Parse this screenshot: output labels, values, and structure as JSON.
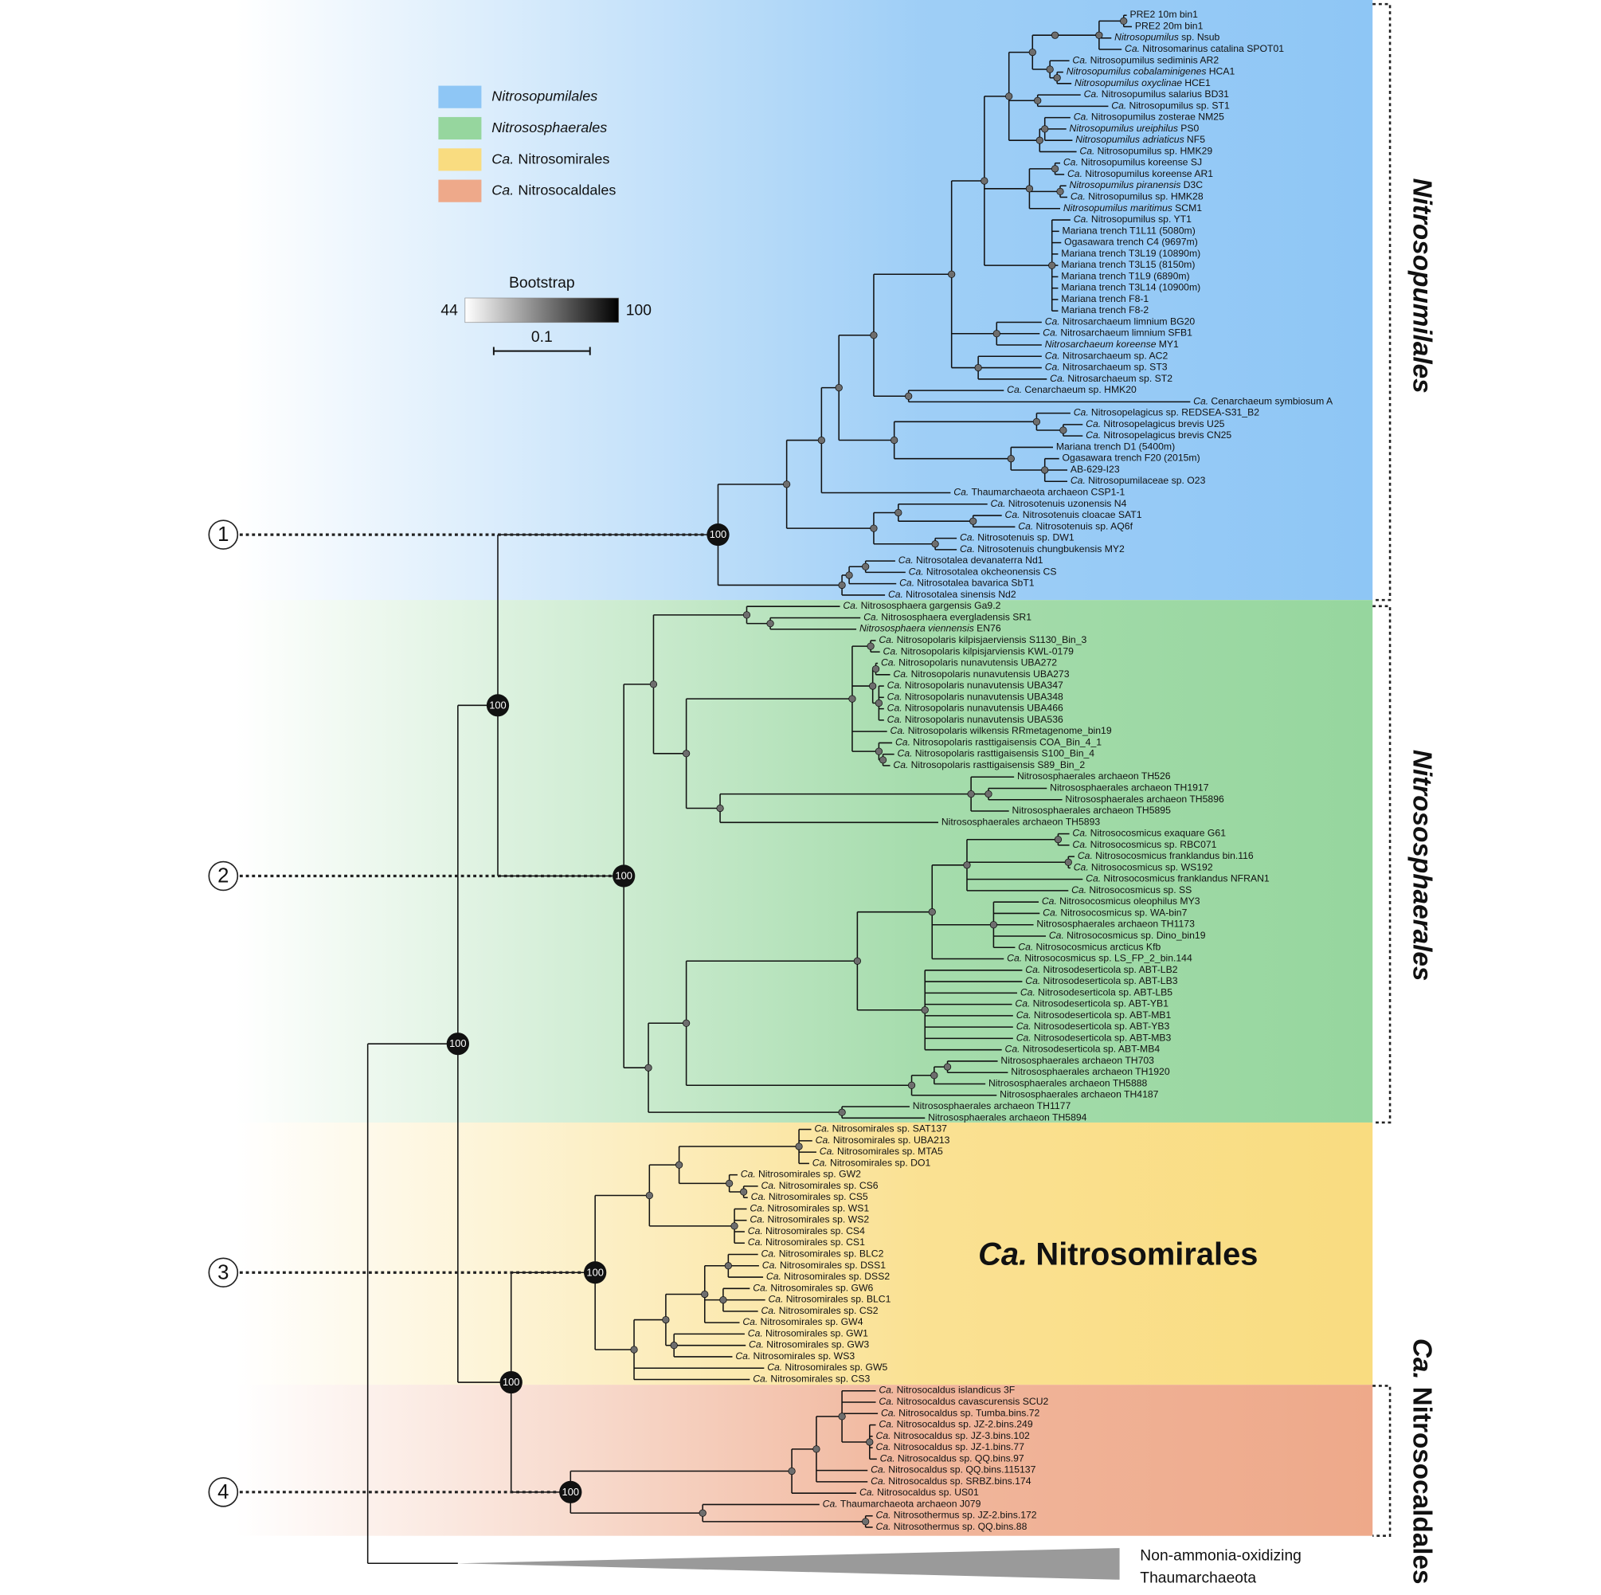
{
  "legend": [
    {
      "color": "#8ec6f5",
      "i": "Nitrosopumilales"
    },
    {
      "color": "#96d69e",
      "i": "Nitrososphaerales"
    },
    {
      "color": "#f9dc80",
      "i": "Ca.",
      "t": "Nitrosomirales"
    },
    {
      "color": "#eea98a",
      "i": "Ca.",
      "t": "Nitrosocaldales"
    }
  ],
  "bootstrap_legend": {
    "title": "Bootstrap",
    "min": 44,
    "max": 100
  },
  "scale_bar": 0.1,
  "leaves": [
    {
      "t": "PRE2 10m bin1"
    },
    {
      "t": "PRE2 20m bin1"
    },
    {
      "i": "Nitrosopumilus",
      "t": "sp. Nsub"
    },
    {
      "i": "Ca.",
      "t": "Nitrosomarinus catalina SPOT01"
    },
    {
      "i": "Ca.",
      "t": "Nitrosopumilus sediminis AR2"
    },
    {
      "i": "Nitrosopumilus cobalaminigenes",
      "t": "HCA1"
    },
    {
      "i": "Nitrosopumilus oxyclinae",
      "t": "HCE1"
    },
    {
      "i": "Ca.",
      "t": "Nitrosopumilus salarius BD31"
    },
    {
      "i": "Ca.",
      "t": "Nitrosopumilus sp. ST1"
    },
    {
      "i": "Ca.",
      "t": "Nitrosopumilus zosterae NM25"
    },
    {
      "i": "Nitrosopumilus ureiphilus",
      "t": "PS0"
    },
    {
      "i": "Nitrosopumilus adriaticus",
      "t": "NF5"
    },
    {
      "i": "Ca.",
      "t": "Nitrosopumilus sp. HMK29"
    },
    {
      "i": "Ca.",
      "t": "Nitrosopumilus koreense SJ"
    },
    {
      "i": "Ca.",
      "t": "Nitrosopumilus koreense AR1"
    },
    {
      "i": "Nitrosopumilus piranensis",
      "t": "D3C"
    },
    {
      "i": "Ca.",
      "t": "Nitrosopumilus sp. HMK28"
    },
    {
      "i": "Nitrosopumilus maritimus",
      "t": "SCM1"
    },
    {
      "i": "Ca.",
      "t": "Nitrosopumilus sp. YT1"
    },
    {
      "t": "Mariana trench T1L11 (5080m)"
    },
    {
      "t": "Ogasawara trench C4 (9697m)"
    },
    {
      "t": "Mariana trench T3L19 (10890m)"
    },
    {
      "t": "Mariana trench T3L15 (8150m)"
    },
    {
      "t": "Mariana trench T1L9 (6890m)"
    },
    {
      "t": "Mariana trench T3L14 (10900m)"
    },
    {
      "t": "Mariana trench F8-1"
    },
    {
      "t": "Mariana trench F8-2"
    },
    {
      "i": "Ca.",
      "t": "Nitrosarchaeum limnium BG20"
    },
    {
      "i": "Ca.",
      "t": "Nitrosarchaeum limnium SFB1"
    },
    {
      "i": "Nitrosarchaeum koreense",
      "t": "MY1"
    },
    {
      "i": "Ca.",
      "t": "Nitrosarchaeum sp. AC2"
    },
    {
      "i": "Ca.",
      "t": "Nitrosarchaeum sp. ST3"
    },
    {
      "i": "Ca.",
      "t": "Nitrosarchaeum sp. ST2"
    },
    {
      "i": "Ca.",
      "t": "Cenarchaeum sp. HMK20"
    },
    {
      "i": "Ca.",
      "t": "Cenarchaeum symbiosum A"
    },
    {
      "i": "Ca.",
      "t": "Nitrosopelagicus sp. REDSEA-S31_B2"
    },
    {
      "i": "Ca.",
      "t": "Nitrosopelagicus brevis U25"
    },
    {
      "i": "Ca.",
      "t": "Nitrosopelagicus brevis CN25"
    },
    {
      "t": "Mariana trench D1 (5400m)"
    },
    {
      "t": "Ogasawara trench F20 (2015m)"
    },
    {
      "t": "AB-629-I23"
    },
    {
      "i": "Ca.",
      "t": "Nitrosopumilaceae sp. O23"
    },
    {
      "i": "Ca.",
      "t": "Thaumarchaeota archaeon CSP1-1"
    },
    {
      "i": "Ca.",
      "t": "Nitrosotenuis uzonensis N4"
    },
    {
      "i": "Ca.",
      "t": "Nitrosotenuis cloacae SAT1"
    },
    {
      "i": "Ca.",
      "t": "Nitrosotenuis sp. AQ6f"
    },
    {
      "i": "Ca.",
      "t": "Nitrosotenuis sp. DW1"
    },
    {
      "i": "Ca.",
      "t": "Nitrosotenuis chungbukensis MY2"
    },
    {
      "i": "Ca.",
      "t": "Nitrosotalea devanaterra Nd1"
    },
    {
      "i": "Ca.",
      "t": "Nitrosotalea okcheonensis CS"
    },
    {
      "i": "Ca.",
      "t": "Nitrosotalea bavarica SbT1"
    },
    {
      "i": "Ca.",
      "t": "Nitrosotalea sinensis Nd2"
    },
    {
      "i": "Ca.",
      "t": "Nitrososphaera gargensis Ga9.2"
    },
    {
      "i": "Ca.",
      "t": "Nitrososphaera evergladensis SR1"
    },
    {
      "i": "Nitrososphaera viennensis",
      "t": "EN76"
    },
    {
      "i": "Ca.",
      "t": "Nitrosopolaris kilpisjaerviensis S1130_Bin_3"
    },
    {
      "i": "Ca.",
      "t": "Nitrosopolaris kilpisjarviensis KWL-0179"
    },
    {
      "i": "Ca.",
      "t": "Nitrosopolaris nunavutensis UBA272"
    },
    {
      "i": "Ca.",
      "t": "Nitrosopolaris nunavutensis UBA273"
    },
    {
      "i": "Ca.",
      "t": "Nitrosopolaris nunavutensis UBA347"
    },
    {
      "i": "Ca.",
      "t": "Nitrosopolaris nunavutensis UBA348"
    },
    {
      "i": "Ca.",
      "t": "Nitrosopolaris nunavutensis UBA466"
    },
    {
      "i": "Ca.",
      "t": "Nitrosopolaris nunavutensis UBA536"
    },
    {
      "i": "Ca.",
      "t": "Nitrosopolaris wilkensis RRmetagenome_bin19"
    },
    {
      "i": "Ca.",
      "t": "Nitrosopolaris rasttigaisensis COA_Bin_4_1"
    },
    {
      "i": "Ca.",
      "t": "Nitrosopolaris rasttigaisensis S100_Bin_4"
    },
    {
      "i": "Ca.",
      "t": "Nitrosopolaris rasttigaisensis S89_Bin_2"
    },
    {
      "t": "Nitrososphaerales archaeon TH526"
    },
    {
      "t": "Nitrososphaerales archaeon TH1917"
    },
    {
      "t": "Nitrososphaerales archaeon TH5896"
    },
    {
      "t": "Nitrososphaerales archaeon TH5895"
    },
    {
      "t": "Nitrososphaerales archaeon TH5893"
    },
    {
      "i": "Ca.",
      "t": "Nitrosocosmicus exaquare G61"
    },
    {
      "i": "Ca.",
      "t": "Nitrosocosmicus sp. RBC071"
    },
    {
      "i": "Ca.",
      "t": "Nitrosocosmicus franklandus bin.116"
    },
    {
      "i": "Ca.",
      "t": "Nitrosocosmicus sp. WS192"
    },
    {
      "i": "Ca.",
      "t": "Nitrosocosmicus franklandus NFRAN1"
    },
    {
      "i": "Ca.",
      "t": "Nitrosocosmicus sp. SS"
    },
    {
      "i": "Ca.",
      "t": "Nitrosocosmicus oleophilus MY3"
    },
    {
      "i": "Ca.",
      "t": "Nitrosocosmicus sp. WA-bin7"
    },
    {
      "t": "Nitrososphaerales archaeon TH1173"
    },
    {
      "i": "Ca.",
      "t": "Nitrosocosmicus sp. Dino_bin19"
    },
    {
      "i": "Ca.",
      "t": "Nitrosocosmicus arcticus Kfb"
    },
    {
      "i": "Ca.",
      "t": "Nitrosocosmicus sp. LS_FP_2_bin.144"
    },
    {
      "i": "Ca.",
      "t": "Nitrosodeserticola sp. ABT-LB2"
    },
    {
      "i": "Ca.",
      "t": "Nitrosodeserticola sp. ABT-LB3"
    },
    {
      "i": "Ca.",
      "t": "Nitrosodeserticola sp. ABT-LB5"
    },
    {
      "i": "Ca.",
      "t": "Nitrosodeserticola sp. ABT-YB1"
    },
    {
      "i": "Ca.",
      "t": "Nitrosodeserticola sp. ABT-MB1"
    },
    {
      "i": "Ca.",
      "t": "Nitrosodeserticola sp. ABT-YB3"
    },
    {
      "i": "Ca.",
      "t": "Nitrosodeserticola sp. ABT-MB3"
    },
    {
      "i": "Ca.",
      "t": "Nitrosodeserticola sp. ABT-MB4"
    },
    {
      "t": "Nitrososphaerales archaeon TH703"
    },
    {
      "t": "Nitrososphaerales archaeon TH1920"
    },
    {
      "t": "Nitrososphaerales archaeon TH5888"
    },
    {
      "t": "Nitrososphaerales archaeon TH4187"
    },
    {
      "t": "Nitrososphaerales archaeon TH1177"
    },
    {
      "t": "Nitrososphaerales archaeon TH5894"
    },
    {
      "i": "Ca.",
      "t": "Nitrosomirales sp. SAT137"
    },
    {
      "i": "Ca.",
      "t": "Nitrosomirales sp. UBA213"
    },
    {
      "i": "Ca.",
      "t": "Nitrosomirales sp. MTA5"
    },
    {
      "i": "Ca.",
      "t": "Nitrosomirales sp. DO1"
    },
    {
      "i": "Ca.",
      "t": "Nitrosomirales sp. GW2"
    },
    {
      "i": "Ca.",
      "t": "Nitrosomirales sp. CS6"
    },
    {
      "i": "Ca.",
      "t": "Nitrosomirales sp. CS5"
    },
    {
      "i": "Ca.",
      "t": "Nitrosomirales sp. WS1"
    },
    {
      "i": "Ca.",
      "t": "Nitrosomirales sp. WS2"
    },
    {
      "i": "Ca.",
      "t": "Nitrosomirales sp. CS4"
    },
    {
      "i": "Ca.",
      "t": "Nitrosomirales sp. CS1"
    },
    {
      "i": "Ca.",
      "t": "Nitrosomirales sp. BLC2"
    },
    {
      "i": "Ca.",
      "t": "Nitrosomirales sp. DSS1"
    },
    {
      "i": "Ca.",
      "t": "Nitrosomirales sp. DSS2"
    },
    {
      "i": "Ca.",
      "t": "Nitrosomirales sp. GW6"
    },
    {
      "i": "Ca.",
      "t": "Nitrosomirales sp. BLC1"
    },
    {
      "i": "Ca.",
      "t": "Nitrosomirales sp. CS2"
    },
    {
      "i": "Ca.",
      "t": "Nitrosomirales sp. GW4"
    },
    {
      "i": "Ca.",
      "t": "Nitrosomirales sp. GW1"
    },
    {
      "i": "Ca.",
      "t": "Nitrosomirales sp. GW3"
    },
    {
      "i": "Ca.",
      "t": "Nitrosomirales sp. WS3"
    },
    {
      "i": "Ca.",
      "t": "Nitrosomirales sp. GW5"
    },
    {
      "i": "Ca.",
      "t": "Nitrosomirales sp. CS3"
    },
    {
      "i": "Ca.",
      "t": "Nitrosocaldus islandicus 3F"
    },
    {
      "i": "Ca.",
      "t": "Nitrosocaldus cavascurensis SCU2"
    },
    {
      "i": "Ca.",
      "t": "Nitrosocaldus sp. Tumba.bins.72"
    },
    {
      "i": "Ca.",
      "t": "Nitrosocaldus sp. JZ-2.bins.249"
    },
    {
      "i": "Ca.",
      "t": "Nitrosocaldus sp. JZ-3.bins.102"
    },
    {
      "i": "Ca.",
      "t": "Nitrosocaldus sp. JZ-1.bins.77"
    },
    {
      "i": "Ca.",
      "t": "Nitrosocaldus sp. QQ.bins.97"
    },
    {
      "i": "Ca.",
      "t": "Nitrosocaldus sp. QQ.bins.115137"
    },
    {
      "i": "Ca.",
      "t": "Nitrosocaldus sp. SRBZ.bins.174"
    },
    {
      "i": "Ca.",
      "t": "Nitrosocaldus sp. US01"
    },
    {
      "i": "Ca.",
      "t": "Thaumarchaeota archaeon J079"
    },
    {
      "i": "Ca.",
      "t": "Nitrosothermus sp. JZ-2.bins.172"
    },
    {
      "i": "Ca.",
      "t": "Nitrosothermus sp. QQ.bins.88"
    }
  ],
  "support_labels": [
    "100",
    "100",
    "100",
    "100",
    "100",
    "100",
    "100"
  ],
  "clade_markers": [
    1,
    2,
    3,
    4
  ],
  "order_labels": [
    {
      "i": "Nitrosopumilales"
    },
    {
      "i": "Nitrososphaerales"
    },
    {
      "i": "Ca.",
      "t": "Nitrosocaldales"
    }
  ],
  "band_label": {
    "i": "Ca.",
    "t": "Nitrosomirales"
  },
  "outgroup": [
    "Non-ammonia-oxidizing",
    "Thaumarchaeota"
  ]
}
